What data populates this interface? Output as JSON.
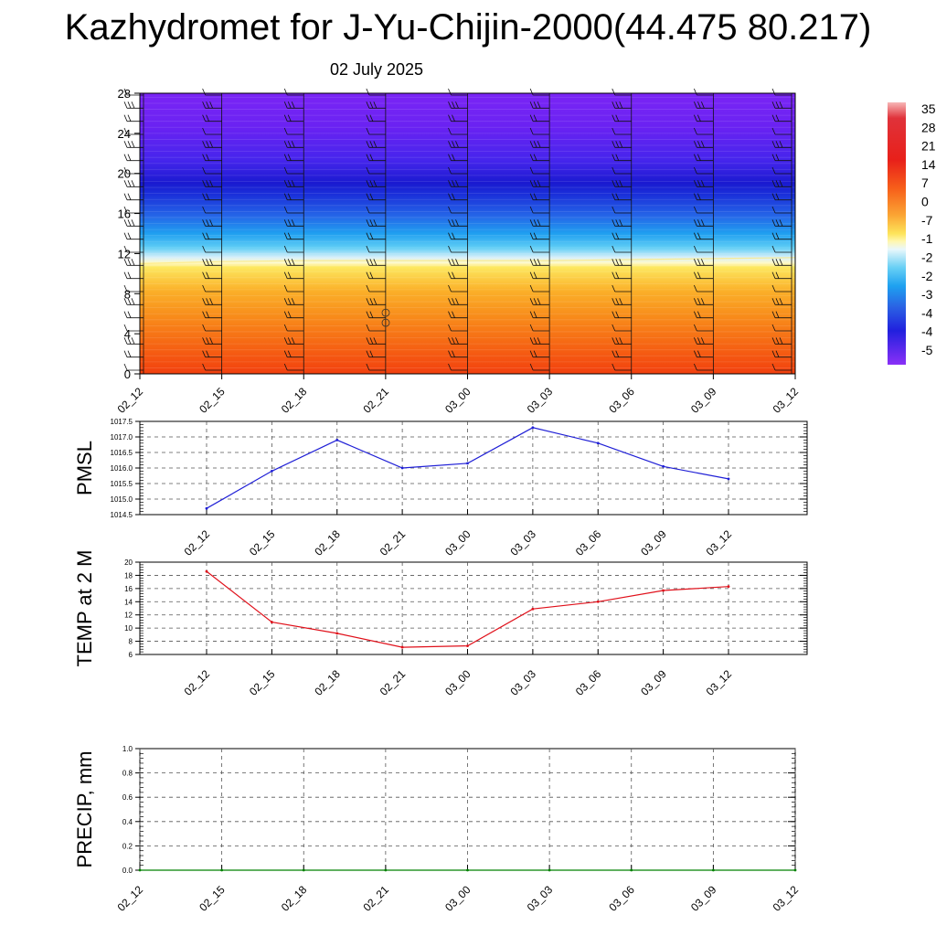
{
  "title": "Kazhydromet for J-Yu-Chijin-2000(44.475 80.217)",
  "subtitle": "02 July 2025",
  "colors": {
    "pmsl_line": "#1f1fd6",
    "temp_line": "#e0101a",
    "precip_line": "#008000",
    "grid": "#555555"
  },
  "chart_data": [
    {
      "id": "cross-section",
      "type": "heatmap",
      "title": "",
      "xlabel": "",
      "ylabel": "",
      "x_ticks": [
        "02_12",
        "02_15",
        "02_18",
        "02_21",
        "03_00",
        "03_03",
        "03_06",
        "03_09",
        "03_12"
      ],
      "y_ticks": [
        0,
        4,
        8,
        12,
        16,
        20,
        24,
        28
      ],
      "ylim": [
        0,
        28
      ],
      "colorbar_labels": [
        "35",
        "28",
        "21",
        "14",
        "7",
        "0",
        "-7",
        "-1",
        "-2",
        "-2",
        "-3",
        "-4",
        "-4",
        "-5"
      ],
      "freezing_level": [
        11.0,
        11.2,
        11.3,
        11.3,
        11.3,
        11.3,
        11.4,
        11.5,
        11.6
      ],
      "wind_barbs": "present"
    },
    {
      "id": "pmsl",
      "type": "line",
      "ylabel": "PMSL",
      "categories": [
        "02_12",
        "02_15",
        "02_18",
        "02_21",
        "03_00",
        "03_03",
        "03_06",
        "03_09",
        "03_12"
      ],
      "values": [
        1014.7,
        1015.9,
        1016.9,
        1016.0,
        1016.15,
        1017.3,
        1016.8,
        1016.05,
        1015.65
      ],
      "ylim": [
        1014.5,
        1017.5
      ],
      "y_ticks": [
        "1014.5",
        "1015.0",
        "1015.5",
        "1016.0",
        "1016.5",
        "1017.0",
        "1017.5"
      ],
      "grid": true
    },
    {
      "id": "temp2m",
      "type": "line",
      "ylabel": "TEMP at 2 M",
      "categories": [
        "02_12",
        "02_15",
        "02_18",
        "02_21",
        "03_00",
        "03_03",
        "03_06",
        "03_09",
        "03_12"
      ],
      "values": [
        18.6,
        10.9,
        9.2,
        7.1,
        7.3,
        12.9,
        14.0,
        15.7,
        16.3
      ],
      "ylim": [
        6,
        20
      ],
      "y_ticks": [
        "6",
        "8",
        "10",
        "12",
        "14",
        "16",
        "18",
        "20"
      ],
      "grid": true
    },
    {
      "id": "precip",
      "type": "line",
      "ylabel": "PRECIP, mm",
      "categories": [
        "02_12",
        "02_15",
        "02_18",
        "02_21",
        "03_00",
        "03_03",
        "03_06",
        "03_09",
        "03_12"
      ],
      "values": [
        0,
        0,
        0,
        0,
        0,
        0,
        0,
        0,
        0
      ],
      "ylim": [
        0,
        1
      ],
      "y_ticks": [
        "0.0",
        "0.2",
        "0.4",
        "0.6",
        "0.8",
        "1.0"
      ],
      "grid": true
    }
  ]
}
